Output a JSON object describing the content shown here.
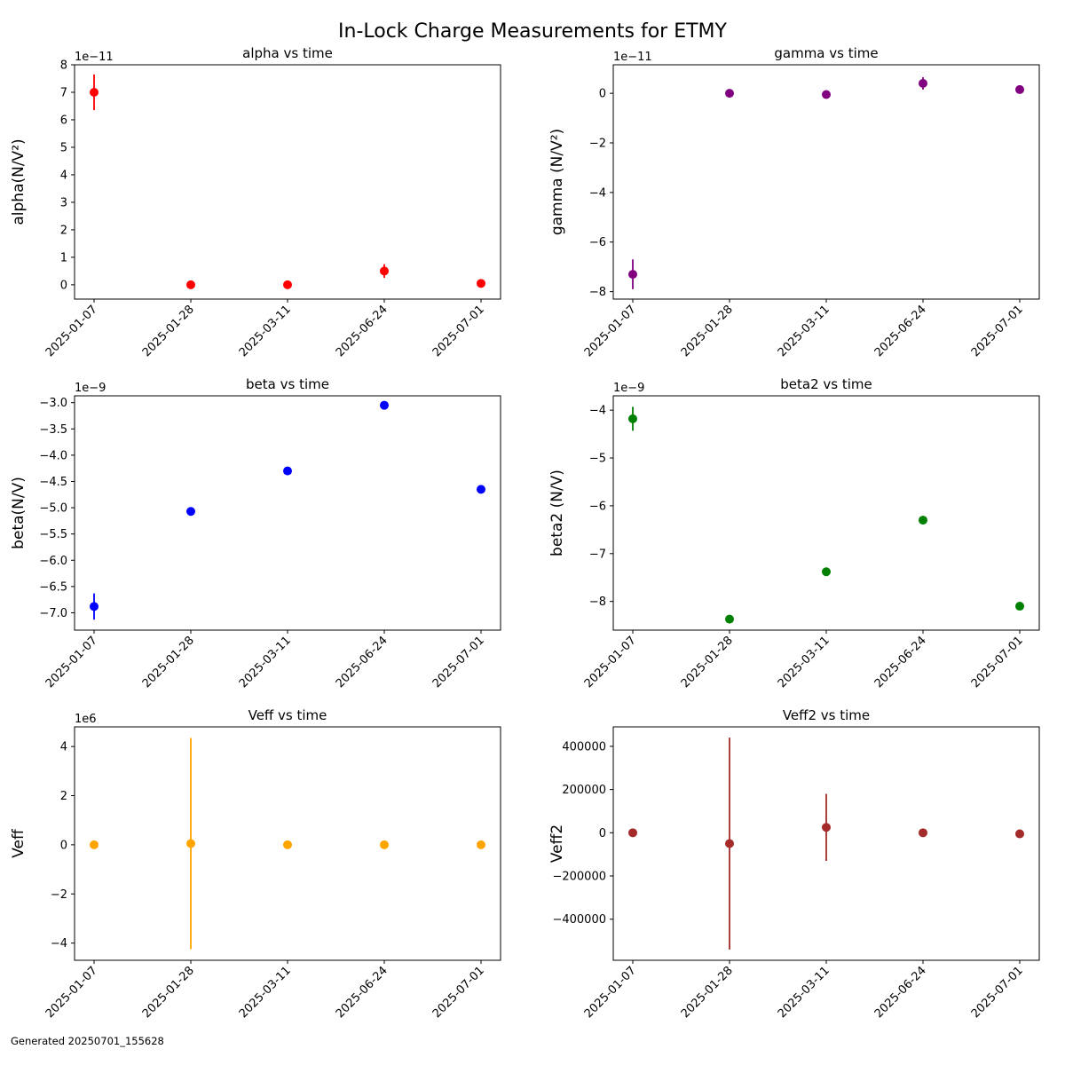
{
  "suptitle": "In-Lock Charge Measurements for ETMY",
  "footer": "Generated 20250701_155628",
  "chart_data": [
    {
      "type": "scatter",
      "title": "alpha vs time",
      "ylabel": "alpha(N/V²)",
      "offset_text": "1e−11",
      "color": "#ff0000",
      "x": [
        "2025-01-07",
        "2025-01-28",
        "2025-03-11",
        "2025-06-24",
        "2025-07-01"
      ],
      "y": [
        7.0,
        0.0,
        0.0,
        0.5,
        0.05
      ],
      "yerr": [
        0.65,
        0.0,
        0.0,
        0.25,
        0.15
      ],
      "ylim": [
        -0.52,
        8.0
      ],
      "yticks": [
        0,
        1,
        2,
        3,
        4,
        5,
        6,
        7,
        8
      ],
      "ytick_labels": [
        "0",
        "1",
        "2",
        "3",
        "4",
        "5",
        "6",
        "7",
        "8"
      ]
    },
    {
      "type": "scatter",
      "title": "gamma vs time",
      "ylabel": "gamma (N/V²)",
      "offset_text": "1e−11",
      "color": "#800080",
      "x": [
        "2025-01-07",
        "2025-01-28",
        "2025-03-11",
        "2025-06-24",
        "2025-07-01"
      ],
      "y": [
        -7.3,
        0.0,
        -0.05,
        0.4,
        0.15
      ],
      "yerr": [
        0.6,
        0.0,
        0.0,
        0.25,
        0.0
      ],
      "ylim": [
        -8.3,
        1.15
      ],
      "yticks": [
        -8,
        -6,
        -4,
        -2,
        0
      ],
      "ytick_labels": [
        "−8",
        "−6",
        "−4",
        "−2",
        "0"
      ]
    },
    {
      "type": "scatter",
      "title": "beta vs time",
      "ylabel": "beta(N/V)",
      "offset_text": "1e−9",
      "color": "#0000ff",
      "x": [
        "2025-01-07",
        "2025-01-28",
        "2025-03-11",
        "2025-06-24",
        "2025-07-01"
      ],
      "y": [
        -6.88,
        -5.07,
        -4.3,
        -3.05,
        -4.65
      ],
      "yerr": [
        0.25,
        0.0,
        0.0,
        0.0,
        0.0
      ],
      "ylim": [
        -7.33,
        -2.87
      ],
      "yticks": [
        -7.0,
        -6.5,
        -6.0,
        -5.5,
        -5.0,
        -4.5,
        -4.0,
        -3.5,
        -3.0
      ],
      "ytick_labels": [
        "−7.0",
        "−6.5",
        "−6.0",
        "−5.5",
        "−5.0",
        "−4.5",
        "−4.0",
        "−3.5",
        "−3.0"
      ]
    },
    {
      "type": "scatter",
      "title": "beta2 vs time",
      "ylabel": "beta2 (N/V)",
      "offset_text": "1e−9",
      "color": "#008000",
      "x": [
        "2025-01-07",
        "2025-01-28",
        "2025-03-11",
        "2025-06-24",
        "2025-07-01"
      ],
      "y": [
        -4.18,
        -8.37,
        -7.38,
        -6.3,
        -8.1
      ],
      "yerr": [
        0.25,
        0.0,
        0.0,
        0.0,
        0.0
      ],
      "ylim": [
        -8.6,
        -3.7
      ],
      "yticks": [
        -8,
        -7,
        -6,
        -5,
        -4
      ],
      "ytick_labels": [
        "−8",
        "−7",
        "−6",
        "−5",
        "−4"
      ]
    },
    {
      "type": "scatter",
      "title": "Veff vs time",
      "ylabel": "Veff",
      "offset_text": "1e6",
      "color": "#ffa500",
      "x": [
        "2025-01-07",
        "2025-01-28",
        "2025-03-11",
        "2025-06-24",
        "2025-07-01"
      ],
      "y": [
        0.0,
        0.05,
        0.0,
        0.0,
        0.0
      ],
      "yerr": [
        0.0,
        4.3,
        0.0,
        0.0,
        0.0
      ],
      "ylim": [
        -4.7,
        4.8
      ],
      "yticks": [
        -4,
        -2,
        0,
        2,
        4
      ],
      "ytick_labels": [
        "−4",
        "−2",
        "0",
        "2",
        "4"
      ]
    },
    {
      "type": "scatter",
      "title": "Veff2 vs time",
      "ylabel": "Veff2",
      "offset_text": "",
      "color": "#a52a2a",
      "x": [
        "2025-01-07",
        "2025-01-28",
        "2025-03-11",
        "2025-06-24",
        "2025-07-01"
      ],
      "y": [
        0,
        -50000,
        25000,
        0,
        -5000
      ],
      "yerr": [
        0,
        490000,
        155000,
        0,
        0
      ],
      "ylim": [
        -590000,
        490000
      ],
      "yticks": [
        -400000,
        -200000,
        0,
        200000,
        400000
      ],
      "ytick_labels": [
        "−400000",
        "−200000",
        "0",
        "200000",
        "400000"
      ]
    }
  ]
}
